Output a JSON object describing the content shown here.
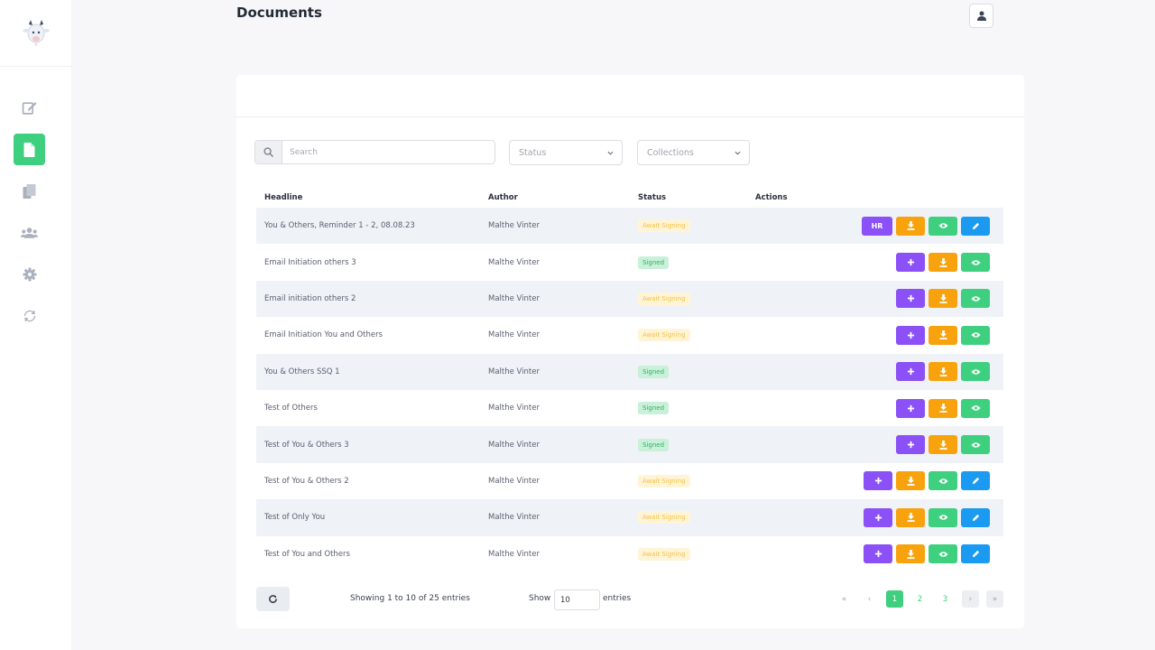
{
  "page": {
    "title": "Documents"
  },
  "sidebar": {
    "items": [
      {
        "icon": "edit-icon",
        "active": false
      },
      {
        "icon": "document-icon",
        "active": true
      },
      {
        "icon": "copy-icon",
        "active": false
      },
      {
        "icon": "users-icon",
        "active": false
      },
      {
        "icon": "gear-icon",
        "active": false
      },
      {
        "icon": "sync-icon",
        "active": false
      }
    ]
  },
  "filters": {
    "search_placeholder": "Search",
    "status_label": "Status",
    "collections_label": "Collections"
  },
  "table": {
    "headers": {
      "headline": "Headline",
      "author": "Author",
      "status": "Status",
      "actions": "Actions"
    },
    "rows": [
      {
        "headline": "You & Others, Reminder 1 - 2, 08.08.23",
        "author": "Malthe Vinter",
        "status": "Await Signing"
      },
      {
        "headline": "Email Initiation others 3",
        "author": "Malthe Vinter",
        "status": "Signed"
      },
      {
        "headline": "Email initiation others 2",
        "author": "Malthe Vinter",
        "status": "Await Signing"
      },
      {
        "headline": "Email Initiation You and Others",
        "author": "Malthe Vinter",
        "status": "Await Signing"
      },
      {
        "headline": "You & Others SSQ 1",
        "author": "Malthe Vinter",
        "status": "Signed"
      },
      {
        "headline": "Test of Others",
        "author": "Malthe Vinter",
        "status": "Signed"
      },
      {
        "headline": "Test of You & Others 3",
        "author": "Malthe Vinter",
        "status": "Signed"
      },
      {
        "headline": "Test of You & Others 2",
        "author": "Malthe Vinter",
        "status": "Await Signing"
      },
      {
        "headline": "Test of Only You",
        "author": "Malthe Vinter",
        "status": "Await Signing"
      },
      {
        "headline": "Test of You and Others",
        "author": "Malthe Vinter",
        "status": "Await Signing"
      }
    ],
    "hr_label": "HR"
  },
  "footer": {
    "showing": "Showing 1 to 10 of 25 entries",
    "show_label": "Show",
    "page_size": "10",
    "entries_label": "entries",
    "pagination": {
      "first": "«",
      "prev": "‹",
      "pages": [
        "1",
        "2",
        "3"
      ],
      "next": "›",
      "last": "»"
    }
  },
  "colors": {
    "accent_green": "#3ecf7f",
    "purple": "#8b50f6",
    "orange": "#f8a20d",
    "blue": "#1a9af0",
    "await_text": "#f6c244",
    "signed_text": "#2fb364"
  }
}
